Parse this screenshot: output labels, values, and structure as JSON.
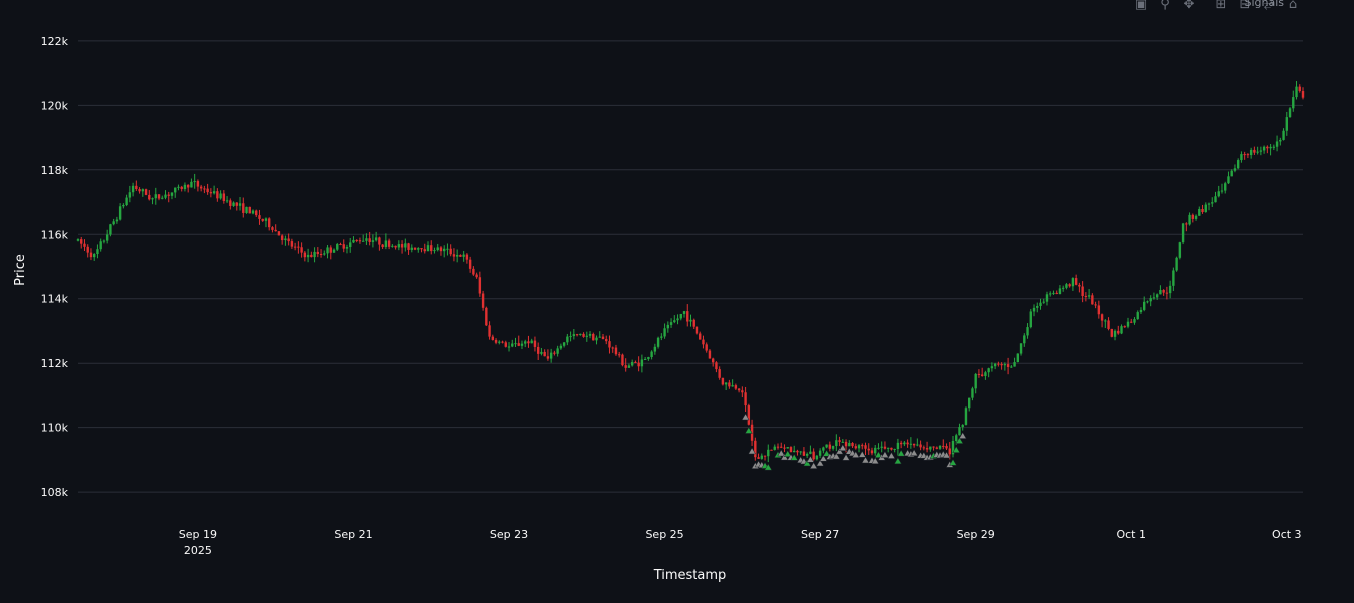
{
  "chart_data": {
    "type": "candlestick",
    "title": "",
    "xlabel": "Timestamp",
    "ylabel": "Price",
    "ylim": [
      107600,
      122400
    ],
    "xlim": [
      "2025-09-17T11:00",
      "2025-10-03T05:00"
    ],
    "y_ticks": [
      {
        "value": 108000,
        "label": "108k"
      },
      {
        "value": 110000,
        "label": "110k"
      },
      {
        "value": 112000,
        "label": "112k"
      },
      {
        "value": 114000,
        "label": "114k"
      },
      {
        "value": 116000,
        "label": "116k"
      },
      {
        "value": 118000,
        "label": "118k"
      },
      {
        "value": 120000,
        "label": "120k"
      },
      {
        "value": 122000,
        "label": "122k"
      }
    ],
    "x_ticks": [
      {
        "value": "2025-09-19T00:00",
        "label": "Sep 19",
        "sublabel": "2025"
      },
      {
        "value": "2025-09-21T00:00",
        "label": "Sep 21",
        "sublabel": ""
      },
      {
        "value": "2025-09-23T00:00",
        "label": "Sep 23",
        "sublabel": ""
      },
      {
        "value": "2025-09-25T00:00",
        "label": "Sep 25",
        "sublabel": ""
      },
      {
        "value": "2025-09-27T00:00",
        "label": "Sep 27",
        "sublabel": ""
      },
      {
        "value": "2025-09-29T00:00",
        "label": "Sep 29",
        "sublabel": ""
      },
      {
        "value": "2025-10-01T00:00",
        "label": "Oct 1",
        "sublabel": ""
      },
      {
        "value": "2025-10-03T00:00",
        "label": "Oct 3",
        "sublabel": ""
      }
    ],
    "grid": true,
    "legend": [
      {
        "name": "Signals",
        "position": "top-right"
      }
    ],
    "colors": {
      "up": "#26a641",
      "down": "#e03131",
      "signal": "#8c8c8c",
      "signal_buy": "#26a641",
      "grid": "#2b2f38",
      "background": "#0e1117"
    },
    "close_path": [
      [
        "2025-09-17T11:00",
        115800
      ],
      [
        "2025-09-17T16:00",
        115300
      ],
      [
        "2025-09-17T22:00",
        116400
      ],
      [
        "2025-09-18T04:00",
        117500
      ],
      [
        "2025-09-18T10:00",
        117100
      ],
      [
        "2025-09-18T16:00",
        117300
      ],
      [
        "2025-09-18T22:00",
        117600
      ],
      [
        "2025-09-19T04:00",
        117300
      ],
      [
        "2025-09-19T10:00",
        117000
      ],
      [
        "2025-09-19T16:00",
        116700
      ],
      [
        "2025-09-19T22:00",
        116300
      ],
      [
        "2025-09-20T04:00",
        115700
      ],
      [
        "2025-09-20T10:00",
        115300
      ],
      [
        "2025-09-20T16:00",
        115500
      ],
      [
        "2025-09-20T22:00",
        115700
      ],
      [
        "2025-09-21T04:00",
        115900
      ],
      [
        "2025-09-21T10:00",
        115700
      ],
      [
        "2025-09-21T16:00",
        115600
      ],
      [
        "2025-09-21T22:00",
        115600
      ],
      [
        "2025-09-22T04:00",
        115500
      ],
      [
        "2025-09-22T10:00",
        115300
      ],
      [
        "2025-09-22T14:00",
        114600
      ],
      [
        "2025-09-22T18:00",
        112800
      ],
      [
        "2025-09-23T00:00",
        112500
      ],
      [
        "2025-09-23T06:00",
        112700
      ],
      [
        "2025-09-23T12:00",
        112100
      ],
      [
        "2025-09-23T18:00",
        112800
      ],
      [
        "2025-09-24T00:00",
        112900
      ],
      [
        "2025-09-24T06:00",
        112700
      ],
      [
        "2025-09-24T12:00",
        111900
      ],
      [
        "2025-09-24T18:00",
        112100
      ],
      [
        "2025-09-25T00:00",
        113000
      ],
      [
        "2025-09-25T06:00",
        113600
      ],
      [
        "2025-09-25T12:00",
        112600
      ],
      [
        "2025-09-25T18:00",
        111400
      ],
      [
        "2025-09-26T00:00",
        111200
      ],
      [
        "2025-09-26T04:00",
        109000
      ],
      [
        "2025-09-26T10:00",
        109400
      ],
      [
        "2025-09-26T16:00",
        109300
      ],
      [
        "2025-09-26T22:00",
        109100
      ],
      [
        "2025-09-27T04:00",
        109500
      ],
      [
        "2025-09-27T10:00",
        109500
      ],
      [
        "2025-09-27T16:00",
        109300
      ],
      [
        "2025-09-27T22:00",
        109400
      ],
      [
        "2025-09-28T04:00",
        109500
      ],
      [
        "2025-09-28T10:00",
        109400
      ],
      [
        "2025-09-28T16:00",
        109300
      ],
      [
        "2025-09-28T20:00",
        110200
      ],
      [
        "2025-09-29T00:00",
        111600
      ],
      [
        "2025-09-29T06:00",
        111900
      ],
      [
        "2025-09-29T12:00",
        112000
      ],
      [
        "2025-09-29T18:00",
        113800
      ],
      [
        "2025-09-30T00:00",
        114200
      ],
      [
        "2025-09-30T06:00",
        114500
      ],
      [
        "2025-09-30T12:00",
        113900
      ],
      [
        "2025-09-30T18:00",
        112900
      ],
      [
        "2025-10-01T00:00",
        113300
      ],
      [
        "2025-10-01T06:00",
        114100
      ],
      [
        "2025-10-01T12:00",
        114300
      ],
      [
        "2025-10-01T16:00",
        116300
      ],
      [
        "2025-10-01T22:00",
        116800
      ],
      [
        "2025-10-02T04:00",
        117300
      ],
      [
        "2025-10-02T10:00",
        118500
      ],
      [
        "2025-10-02T16:00",
        118600
      ],
      [
        "2025-10-02T22:00",
        118900
      ],
      [
        "2025-10-03T00:00",
        119600
      ],
      [
        "2025-10-03T03:00",
        120500
      ],
      [
        "2025-10-03T05:00",
        120300
      ]
    ],
    "signal_window": [
      "2025-09-26T00:00",
      "2025-09-28T20:00"
    ]
  },
  "toolbar": {
    "icons": [
      "camera-icon",
      "zoom-icon",
      "pan-icon",
      "zoom-in-icon",
      "zoom-out-icon",
      "autoscale-icon",
      "reset-axes-icon"
    ]
  }
}
